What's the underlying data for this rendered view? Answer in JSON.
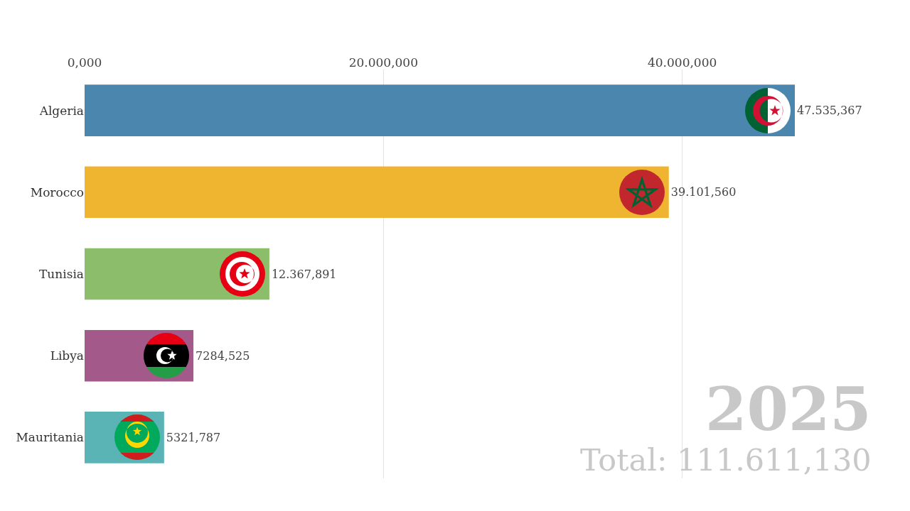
{
  "chart_data": {
    "type": "bar",
    "orientation": "horizontal",
    "categories": [
      "Algeria",
      "Morocco",
      "Tunisia",
      "Libya",
      "Mauritania"
    ],
    "values": [
      47535.367,
      39101.56,
      12367.891,
      7284.525,
      5321.787
    ],
    "colors": [
      "#4a86ae",
      "#f0b530",
      "#8cbd6a",
      "#a35a8a",
      "#5ab4b6"
    ],
    "value_labels": [
      "47.535,367",
      "39.101,560",
      "12.367,891",
      "7284,525",
      "5321,787"
    ],
    "xlim": [
      0,
      47535.367
    ],
    "xticks": [
      {
        "value": 0,
        "label": "0,000"
      },
      {
        "value": 20000,
        "label": "20.000,000"
      },
      {
        "value": 40000,
        "label": "40.000,000"
      }
    ],
    "grid": "x",
    "annotations": [
      "2025",
      "Total: 111.611,130"
    ]
  }
}
